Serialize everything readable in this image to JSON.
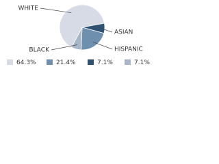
{
  "chart_data": {
    "type": "pie",
    "categories": [
      "WHITE",
      "HISPANIC",
      "ASIAN",
      "BLACK"
    ],
    "values": [
      64.3,
      21.4,
      7.1,
      7.1
    ],
    "value_labels": [
      "64.3%",
      "21.4%",
      "7.1%",
      "7.1%"
    ],
    "colors": [
      "#d6dbe5",
      "#6f8fae",
      "#2e5272",
      "#a7b7c9"
    ],
    "legend": "bottom"
  }
}
